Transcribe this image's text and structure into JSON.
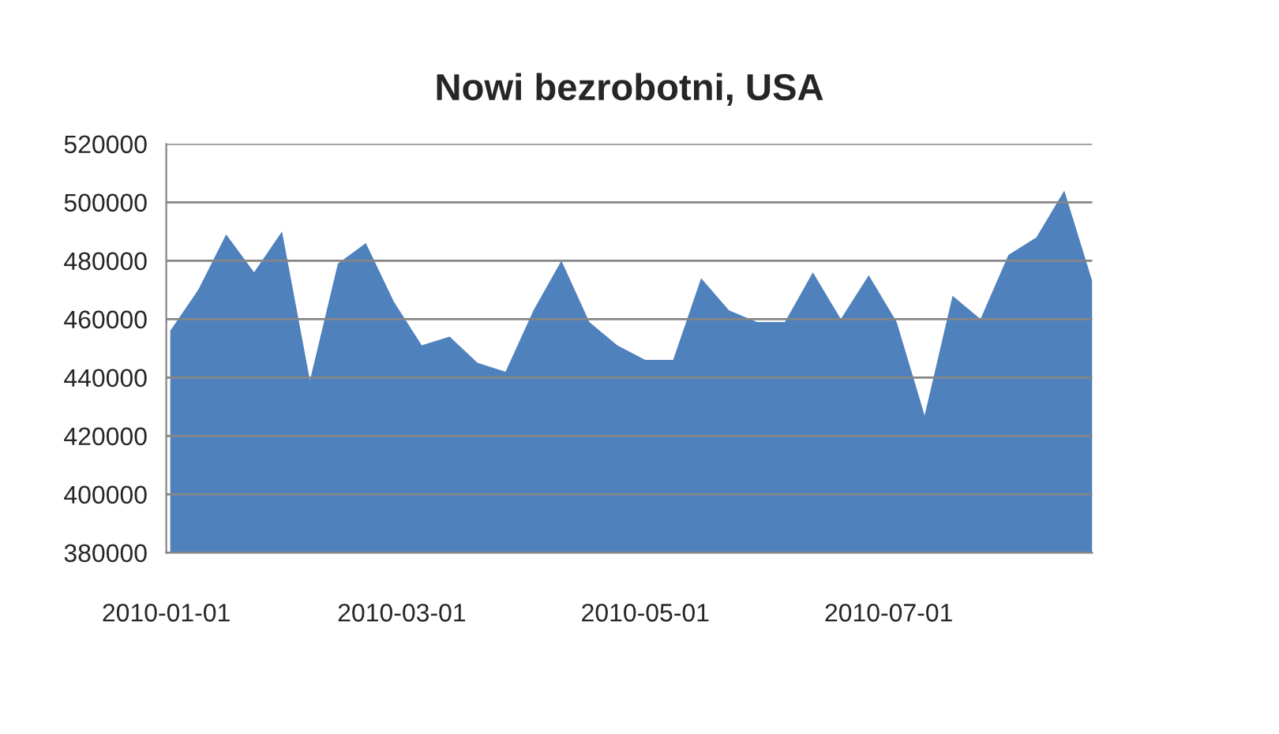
{
  "chart_data": {
    "type": "area",
    "title": "Nowi bezrobotni, USA",
    "x": [
      "2010-01-02",
      "2010-01-09",
      "2010-01-16",
      "2010-01-23",
      "2010-01-30",
      "2010-02-06",
      "2010-02-13",
      "2010-02-20",
      "2010-02-27",
      "2010-03-06",
      "2010-03-13",
      "2010-03-20",
      "2010-03-27",
      "2010-04-03",
      "2010-04-10",
      "2010-04-17",
      "2010-04-24",
      "2010-05-01",
      "2010-05-08",
      "2010-05-15",
      "2010-05-22",
      "2010-05-29",
      "2010-06-05",
      "2010-06-12",
      "2010-06-19",
      "2010-06-26",
      "2010-07-03",
      "2010-07-10",
      "2010-07-17",
      "2010-07-24",
      "2010-07-31",
      "2010-08-07",
      "2010-08-14",
      "2010-08-21"
    ],
    "series": [
      {
        "color": "#4f81bd",
        "values": [
          456000,
          470000,
          489000,
          476000,
          490000,
          439000,
          479000,
          486000,
          466000,
          451000,
          454000,
          445000,
          442000,
          463000,
          480000,
          459000,
          451000,
          446000,
          446000,
          474000,
          463000,
          459000,
          459000,
          476000,
          460000,
          475000,
          459000,
          427000,
          468000,
          460000,
          482000,
          488000,
          504000,
          473000
        ]
      }
    ],
    "xlim": [
      "2010-01-01",
      "2010-08-21"
    ],
    "xticks": [
      {
        "value": "2010-01-01",
        "label": "2010-01-01"
      },
      {
        "value": "2010-03-01",
        "label": "2010-03-01"
      },
      {
        "value": "2010-05-01",
        "label": "2010-05-01"
      },
      {
        "value": "2010-07-01",
        "label": "2010-07-01"
      }
    ],
    "ylim": [
      380000,
      520000
    ],
    "yticks": [
      380000,
      400000,
      420000,
      440000,
      460000,
      480000,
      500000,
      520000
    ],
    "grid": "y"
  }
}
